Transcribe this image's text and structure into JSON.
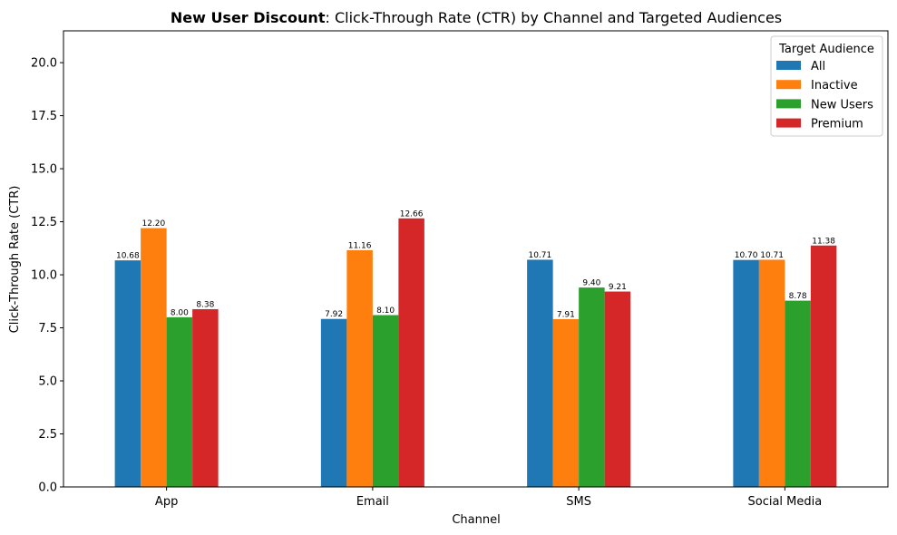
{
  "chart_data": {
    "type": "bar",
    "title_bold": "New User Discount",
    "title_rest": ": Click-Through Rate (CTR) by Channel and Targeted Audiences",
    "xlabel": "Channel",
    "ylabel": "Click-Through Rate (CTR)",
    "categories": [
      "App",
      "Email",
      "SMS",
      "Social Media"
    ],
    "ylim": [
      0,
      21.5
    ],
    "yticks": [
      0.0,
      2.5,
      5.0,
      7.5,
      10.0,
      12.5,
      15.0,
      17.5,
      20.0
    ],
    "ytick_labels": [
      "0.0",
      "2.5",
      "5.0",
      "7.5",
      "10.0",
      "12.5",
      "15.0",
      "17.5",
      "20.0"
    ],
    "grid": false,
    "legend": {
      "title": "Target Audience",
      "placement": "top-right"
    },
    "series": [
      {
        "name": "All",
        "color": "#1f77b4",
        "values": [
          10.68,
          7.92,
          10.71,
          10.7
        ],
        "labels": [
          "10.68",
          "7.92",
          "10.71",
          "10.70"
        ]
      },
      {
        "name": "Inactive",
        "color": "#ff7f0e",
        "values": [
          12.2,
          11.16,
          7.91,
          10.71
        ],
        "labels": [
          "12.20",
          "11.16",
          "7.91",
          "10.71"
        ]
      },
      {
        "name": "New Users",
        "color": "#2ca02c",
        "values": [
          8.0,
          8.1,
          9.4,
          8.78
        ],
        "labels": [
          "8.00",
          "8.10",
          "9.40",
          "8.78"
        ]
      },
      {
        "name": "Premium",
        "color": "#d62728",
        "values": [
          8.38,
          12.66,
          9.21,
          11.38
        ],
        "labels": [
          "8.38",
          "12.66",
          "9.21",
          "11.38"
        ]
      }
    ]
  }
}
